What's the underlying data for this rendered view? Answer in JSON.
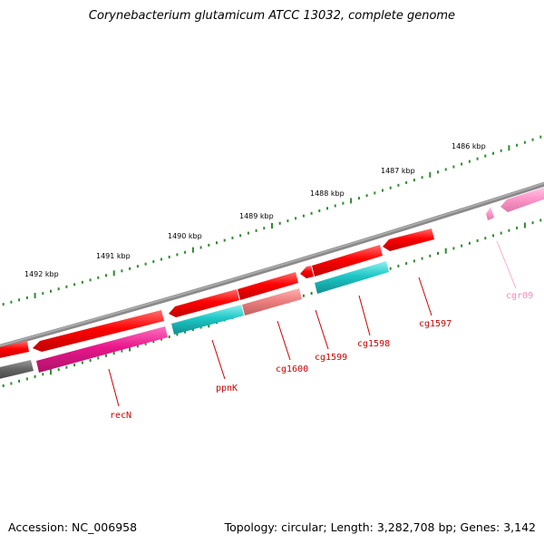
{
  "title": "Corynebacterium glutamicum ATCC 13032, complete genome",
  "footer": {
    "accession": "Accession: NC_006958",
    "summary": "Topology: circular; Length: 3,282,708 bp; Genes: 3,142"
  },
  "scale": [
    "1492 kbp",
    "1491 kbp",
    "1490 kbp",
    "1489 kbp",
    "1488 kbp",
    "1487 kbp",
    "1486 kbp"
  ],
  "genes": [
    "cgr09",
    "cg1597",
    "cg1598",
    "cg1599",
    "cg1600",
    "ppnK",
    "recN"
  ],
  "colors": {
    "backbone": "#808080",
    "tick": "#2e8b2e",
    "gene_red": "#ff0000",
    "gene_magenta": "#e8178a",
    "gene_cyan": "#1fc7c7",
    "gene_salmon": "#ee8080",
    "gene_pink": "#ff99cc",
    "gene_gray": "#666666",
    "label_red": "#cc0000",
    "label_pink": "#ff88bb"
  }
}
